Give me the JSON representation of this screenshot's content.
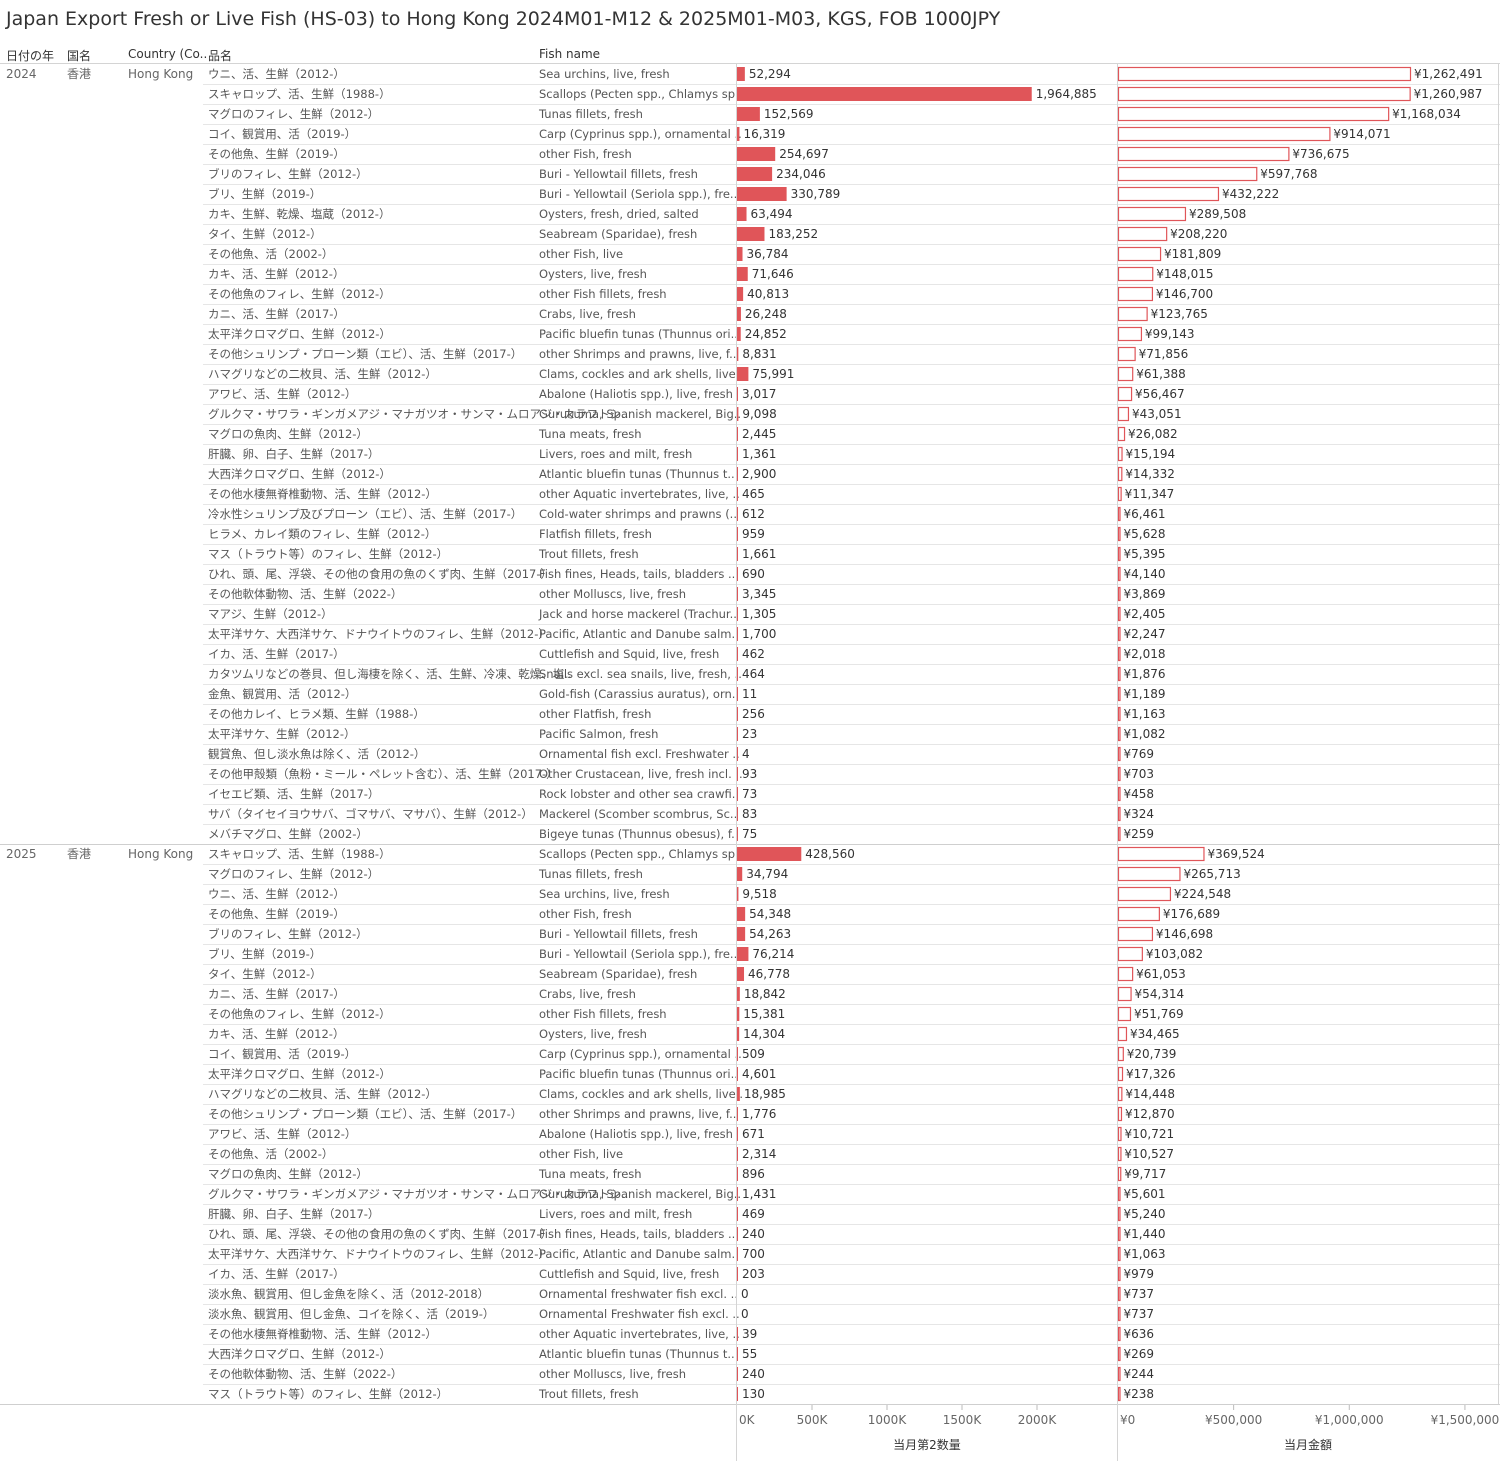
{
  "title": "Japan Export Fresh or Live Fish (HS-03) to Hong Kong 2024M01-M12 & 2025M01-M03, KGS, FOB 1000JPY",
  "headers": {
    "year": "日付の年",
    "country_jp": "国名",
    "country_en": "Country (Co..",
    "item_jp": "品名",
    "fish_name": "Fish name"
  },
  "chart_data": {
    "type": "bar",
    "title": "Japan Export Fresh or Live Fish (HS-03) to Hong Kong 2024M01-M12 & 2025M01-M03, KGS, FOB 1000JPY",
    "groups": [
      {
        "year": "2024",
        "country_jp": "香港",
        "country_en": "Hong Kong",
        "rows": [
          {
            "jp": "ウニ、活、生鮮（2012-）",
            "en": "Sea urchins, live, fresh",
            "qty": 52294,
            "amt": 1262491
          },
          {
            "jp": "スキャロップ、活、生鮮（1988-）",
            "en": "Scallops (Pecten spp., Chlamys sp..",
            "qty": 1964885,
            "amt": 1260987
          },
          {
            "jp": "マグロのフィレ、生鮮（2012-）",
            "en": "Tunas fillets, fresh",
            "qty": 152569,
            "amt": 1168034
          },
          {
            "jp": "コイ、観賞用、活（2019-）",
            "en": "Carp (Cyprinus spp.), ornamental ..",
            "qty": 16319,
            "amt": 914071
          },
          {
            "jp": "その他魚、生鮮（2019-）",
            "en": "other Fish, fresh",
            "qty": 254697,
            "amt": 736675
          },
          {
            "jp": "ブリのフィレ、生鮮（2012-）",
            "en": "Buri - Yellowtail fillets, fresh",
            "qty": 234046,
            "amt": 597768
          },
          {
            "jp": "ブリ、生鮮（2019-）",
            "en": "Buri - Yellowtail (Seriola spp.), fre..",
            "qty": 330789,
            "amt": 432222
          },
          {
            "jp": "カキ、生鮮、乾燥、塩蔵（2012-）",
            "en": "Oysters, fresh, dried, salted",
            "qty": 63494,
            "amt": 289508
          },
          {
            "jp": "タイ、生鮮（2012-）",
            "en": "Seabream (Sparidae), fresh",
            "qty": 183252,
            "amt": 208220
          },
          {
            "jp": "その他魚、活（2002-）",
            "en": "other Fish, live",
            "qty": 36784,
            "amt": 181809
          },
          {
            "jp": "カキ、活、生鮮（2012-）",
            "en": "Oysters, live, fresh",
            "qty": 71646,
            "amt": 148015
          },
          {
            "jp": "その他魚のフィレ、生鮮（2012-）",
            "en": "other Fish fillets, fresh",
            "qty": 40813,
            "amt": 146700
          },
          {
            "jp": "カニ、活、生鮮（2017-）",
            "en": "Crabs, live, fresh",
            "qty": 26248,
            "amt": 123765
          },
          {
            "jp": "太平洋クロマグロ、生鮮（2012-）",
            "en": "Pacific bluefin tunas (Thunnus ori..",
            "qty": 24852,
            "amt": 99143
          },
          {
            "jp": "その他シュリンプ・プローン類（エビ）、活、生鮮（2017-）",
            "en": "other Shrimps and prawns, live, f..",
            "qty": 8831,
            "amt": 71856
          },
          {
            "jp": "ハマグリなどの二枚貝、活、生鮮（2012-）",
            "en": "Clams, cockles and ark shells, live..",
            "qty": 75991,
            "amt": 61388
          },
          {
            "jp": "アワビ、活、生鮮（2012-）",
            "en": "Abalone (Haliotis spp.), live, fresh",
            "qty": 3017,
            "amt": 56467
          },
          {
            "jp": "グルクマ・サワラ・ギンガメアジ・マナガツオ・サンマ・ムロアジ・カラフトシ..",
            "en": "Gurukuma, Spanish mackerel, Big..",
            "qty": 9098,
            "amt": 43051
          },
          {
            "jp": "マグロの魚肉、生鮮（2012-）",
            "en": "Tuna meats, fresh",
            "qty": 2445,
            "amt": 26082
          },
          {
            "jp": "肝臓、卵、白子、生鮮（2017-）",
            "en": "Livers, roes and milt, fresh",
            "qty": 1361,
            "amt": 15194
          },
          {
            "jp": "大西洋クロマグロ、生鮮（2012-）",
            "en": "Atlantic bluefin tunas (Thunnus t..",
            "qty": 2900,
            "amt": 14332
          },
          {
            "jp": "その他水棲無脊椎動物、活、生鮮（2012-）",
            "en": "other Aquatic invertebrates, live, ..",
            "qty": 465,
            "amt": 11347
          },
          {
            "jp": "冷水性シュリンプ及びプローン（エビ）、活、生鮮（2017-）",
            "en": "Cold-water shrimps and prawns (..",
            "qty": 612,
            "amt": 6461
          },
          {
            "jp": "ヒラメ、カレイ類のフィレ、生鮮（2012-）",
            "en": "Flatfish fillets, fresh",
            "qty": 959,
            "amt": 5628
          },
          {
            "jp": "マス（トラウト等）のフィレ、生鮮（2012-）",
            "en": "Trout fillets, fresh",
            "qty": 1661,
            "amt": 5395
          },
          {
            "jp": "ひれ、頭、尾、浮袋、その他の食用の魚のくず肉、生鮮（2017-）",
            "en": "Fish fines, Heads, tails, bladders ..",
            "qty": 690,
            "amt": 4140
          },
          {
            "jp": "その他軟体動物、活、生鮮（2022-）",
            "en": "other Molluscs, live, fresh",
            "qty": 3345,
            "amt": 3869
          },
          {
            "jp": "マアジ、生鮮（2012-）",
            "en": "Jack and horse mackerel (Trachur..",
            "qty": 1305,
            "amt": 2405
          },
          {
            "jp": "太平洋サケ、大西洋サケ、ドナウイトウのフィレ、生鮮（2012-）",
            "en": "Pacific, Atlantic and Danube salm..",
            "qty": 1700,
            "amt": 2247
          },
          {
            "jp": "イカ、活、生鮮（2017-）",
            "en": "Cuttlefish and Squid, live, fresh",
            "qty": 462,
            "amt": 2018
          },
          {
            "jp": "カタツムリなどの巻貝、但し海棲を除く、活、生鮮、冷凍、乾燥、塩..",
            "en": "Snails excl. sea snails, live, fresh, ..",
            "qty": 464,
            "amt": 1876
          },
          {
            "jp": "金魚、観賞用、活（2012-）",
            "en": "Gold-fish (Carassius auratus), orn..",
            "qty": 11,
            "amt": 1189
          },
          {
            "jp": "その他カレイ、ヒラメ類、生鮮（1988-）",
            "en": "other Flatfish, fresh",
            "qty": 256,
            "amt": 1163
          },
          {
            "jp": "太平洋サケ、生鮮（2012-）",
            "en": "Pacific Salmon, fresh",
            "qty": 23,
            "amt": 1082
          },
          {
            "jp": "観賞魚、但し淡水魚は除く、活（2012-）",
            "en": "Ornamental fish excl. Freshwater ..",
            "qty": 4,
            "amt": 769
          },
          {
            "jp": "その他甲殻類（魚粉・ミール・ペレット含む）、活、生鮮（2017-）",
            "en": "Other Crustacean, live, fresh incl. ..",
            "qty": 93,
            "amt": 703
          },
          {
            "jp": "イセエビ類、活、生鮮（2017-）",
            "en": "Rock lobster and other sea crawfi..",
            "qty": 73,
            "amt": 458
          },
          {
            "jp": "サバ（タイセイヨウサバ、ゴマサバ、マサバ）、生鮮（2012-）",
            "en": "Mackerel (Scomber scombrus, Sc..",
            "qty": 83,
            "amt": 324
          },
          {
            "jp": "メバチマグロ、生鮮（2002-）",
            "en": "Bigeye tunas (Thunnus obesus), f..",
            "qty": 75,
            "amt": 259
          }
        ]
      },
      {
        "year": "2025",
        "country_jp": "香港",
        "country_en": "Hong Kong",
        "rows": [
          {
            "jp": "スキャロップ、活、生鮮（1988-）",
            "en": "Scallops (Pecten spp., Chlamys sp..",
            "qty": 428560,
            "amt": 369524
          },
          {
            "jp": "マグロのフィレ、生鮮（2012-）",
            "en": "Tunas fillets, fresh",
            "qty": 34794,
            "amt": 265713
          },
          {
            "jp": "ウニ、活、生鮮（2012-）",
            "en": "Sea urchins, live, fresh",
            "qty": 9518,
            "amt": 224548
          },
          {
            "jp": "その他魚、生鮮（2019-）",
            "en": "other Fish, fresh",
            "qty": 54348,
            "amt": 176689
          },
          {
            "jp": "ブリのフィレ、生鮮（2012-）",
            "en": "Buri - Yellowtail fillets, fresh",
            "qty": 54263,
            "amt": 146698
          },
          {
            "jp": "ブリ、生鮮（2019-）",
            "en": "Buri - Yellowtail (Seriola spp.), fre..",
            "qty": 76214,
            "amt": 103082
          },
          {
            "jp": "タイ、生鮮（2012-）",
            "en": "Seabream (Sparidae), fresh",
            "qty": 46778,
            "amt": 61053
          },
          {
            "jp": "カニ、活、生鮮（2017-）",
            "en": "Crabs, live, fresh",
            "qty": 18842,
            "amt": 54314
          },
          {
            "jp": "その他魚のフィレ、生鮮（2012-）",
            "en": "other Fish fillets, fresh",
            "qty": 15381,
            "amt": 51769
          },
          {
            "jp": "カキ、活、生鮮（2012-）",
            "en": "Oysters, live, fresh",
            "qty": 14304,
            "amt": 34465
          },
          {
            "jp": "コイ、観賞用、活（2019-）",
            "en": "Carp (Cyprinus spp.), ornamental ..",
            "qty": 509,
            "amt": 20739
          },
          {
            "jp": "太平洋クロマグロ、生鮮（2012-）",
            "en": "Pacific bluefin tunas (Thunnus ori..",
            "qty": 4601,
            "amt": 17326
          },
          {
            "jp": "ハマグリなどの二枚貝、活、生鮮（2012-）",
            "en": "Clams, cockles and ark shells, live..",
            "qty": 18985,
            "amt": 14448
          },
          {
            "jp": "その他シュリンプ・プローン類（エビ）、活、生鮮（2017-）",
            "en": "other Shrimps and prawns, live, f..",
            "qty": 1776,
            "amt": 12870
          },
          {
            "jp": "アワビ、活、生鮮（2012-）",
            "en": "Abalone (Haliotis spp.), live, fresh",
            "qty": 671,
            "amt": 10721
          },
          {
            "jp": "その他魚、活（2002-）",
            "en": "other Fish, live",
            "qty": 2314,
            "amt": 10527
          },
          {
            "jp": "マグロの魚肉、生鮮（2012-）",
            "en": "Tuna meats, fresh",
            "qty": 896,
            "amt": 9717
          },
          {
            "jp": "グルクマ・サワラ・ギンガメアジ・マナガツオ・サンマ・ムロアジ・カラフトシ..",
            "en": "Gurukuma, Spanish mackerel, Big..",
            "qty": 1431,
            "amt": 5601
          },
          {
            "jp": "肝臓、卵、白子、生鮮（2017-）",
            "en": "Livers, roes and milt, fresh",
            "qty": 469,
            "amt": 5240
          },
          {
            "jp": "ひれ、頭、尾、浮袋、その他の食用の魚のくず肉、生鮮（2017-）",
            "en": "Fish fines, Heads, tails, bladders ..",
            "qty": 240,
            "amt": 1440
          },
          {
            "jp": "太平洋サケ、大西洋サケ、ドナウイトウのフィレ、生鮮（2012-）",
            "en": "Pacific, Atlantic and Danube salm..",
            "qty": 700,
            "amt": 1063
          },
          {
            "jp": "イカ、活、生鮮（2017-）",
            "en": "Cuttlefish and Squid, live, fresh",
            "qty": 203,
            "amt": 979
          },
          {
            "jp": "淡水魚、観賞用、但し金魚を除く、活（2012-2018）",
            "en": "Ornamental freshwater fish excl. ..",
            "qty": 0,
            "amt": 737
          },
          {
            "jp": "淡水魚、観賞用、但し金魚、コイを除く、活（2019-）",
            "en": "Ornamental Freshwater fish excl. ..",
            "qty": 0,
            "amt": 737
          },
          {
            "jp": "その他水棲無脊椎動物、活、生鮮（2012-）",
            "en": "other Aquatic invertebrates, live, ..",
            "qty": 39,
            "amt": 636
          },
          {
            "jp": "大西洋クロマグロ、生鮮（2012-）",
            "en": "Atlantic bluefin tunas (Thunnus t..",
            "qty": 55,
            "amt": 269
          },
          {
            "jp": "その他軟体動物、活、生鮮（2022-）",
            "en": "other Molluscs, live, fresh",
            "qty": 240,
            "amt": 244
          },
          {
            "jp": "マス（トラウト等）のフィレ、生鮮（2012-）",
            "en": "Trout fillets, fresh",
            "qty": 130,
            "amt": 238
          }
        ]
      }
    ],
    "axes": {
      "qty": {
        "label": "当月第2数量",
        "ticks": [
          "0K",
          "500K",
          "1000K",
          "1500K",
          "2000K"
        ],
        "tick_values": [
          0,
          500000,
          1000000,
          1500000,
          2000000
        ],
        "range": [
          0,
          2500000
        ]
      },
      "amt": {
        "label": "当月金額",
        "ticks": [
          "¥0",
          "¥500,000",
          "¥1,000,000",
          "¥1,500,000"
        ],
        "tick_values": [
          0,
          500000,
          1000000,
          1500000
        ],
        "range": [
          0,
          1650000
        ]
      }
    },
    "colors": {
      "qty_bar": "#e05559",
      "amt_bar_outline": "#e05559",
      "amt_bar_fill": "#ffffff"
    }
  }
}
